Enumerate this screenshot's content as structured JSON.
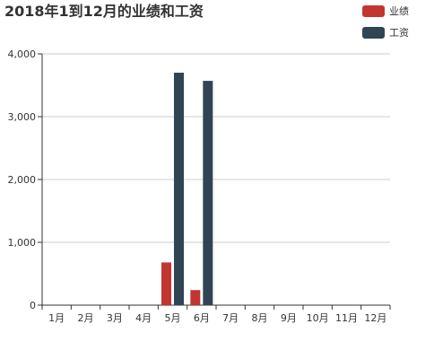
{
  "chart_data": {
    "type": "bar",
    "title": "2018年1到12月的业绩和工资",
    "categories": [
      "1月",
      "2月",
      "3月",
      "4月",
      "5月",
      "6月",
      "7月",
      "8月",
      "9月",
      "10月",
      "11月",
      "12月"
    ],
    "series": [
      {
        "name": "业绩",
        "color": "#c23531",
        "values": [
          0,
          0,
          0,
          0,
          680,
          240,
          0,
          0,
          0,
          0,
          0,
          0
        ]
      },
      {
        "name": "工资",
        "color": "#2f4554",
        "values": [
          0,
          0,
          0,
          0,
          3700,
          3570,
          0,
          0,
          0,
          0,
          0,
          0
        ]
      }
    ],
    "ylim": [
      0,
      4000
    ],
    "yticks": [
      "0",
      "1,000",
      "2,000",
      "3,000",
      "4,000"
    ],
    "grid": true,
    "legend_position": "top-right"
  }
}
